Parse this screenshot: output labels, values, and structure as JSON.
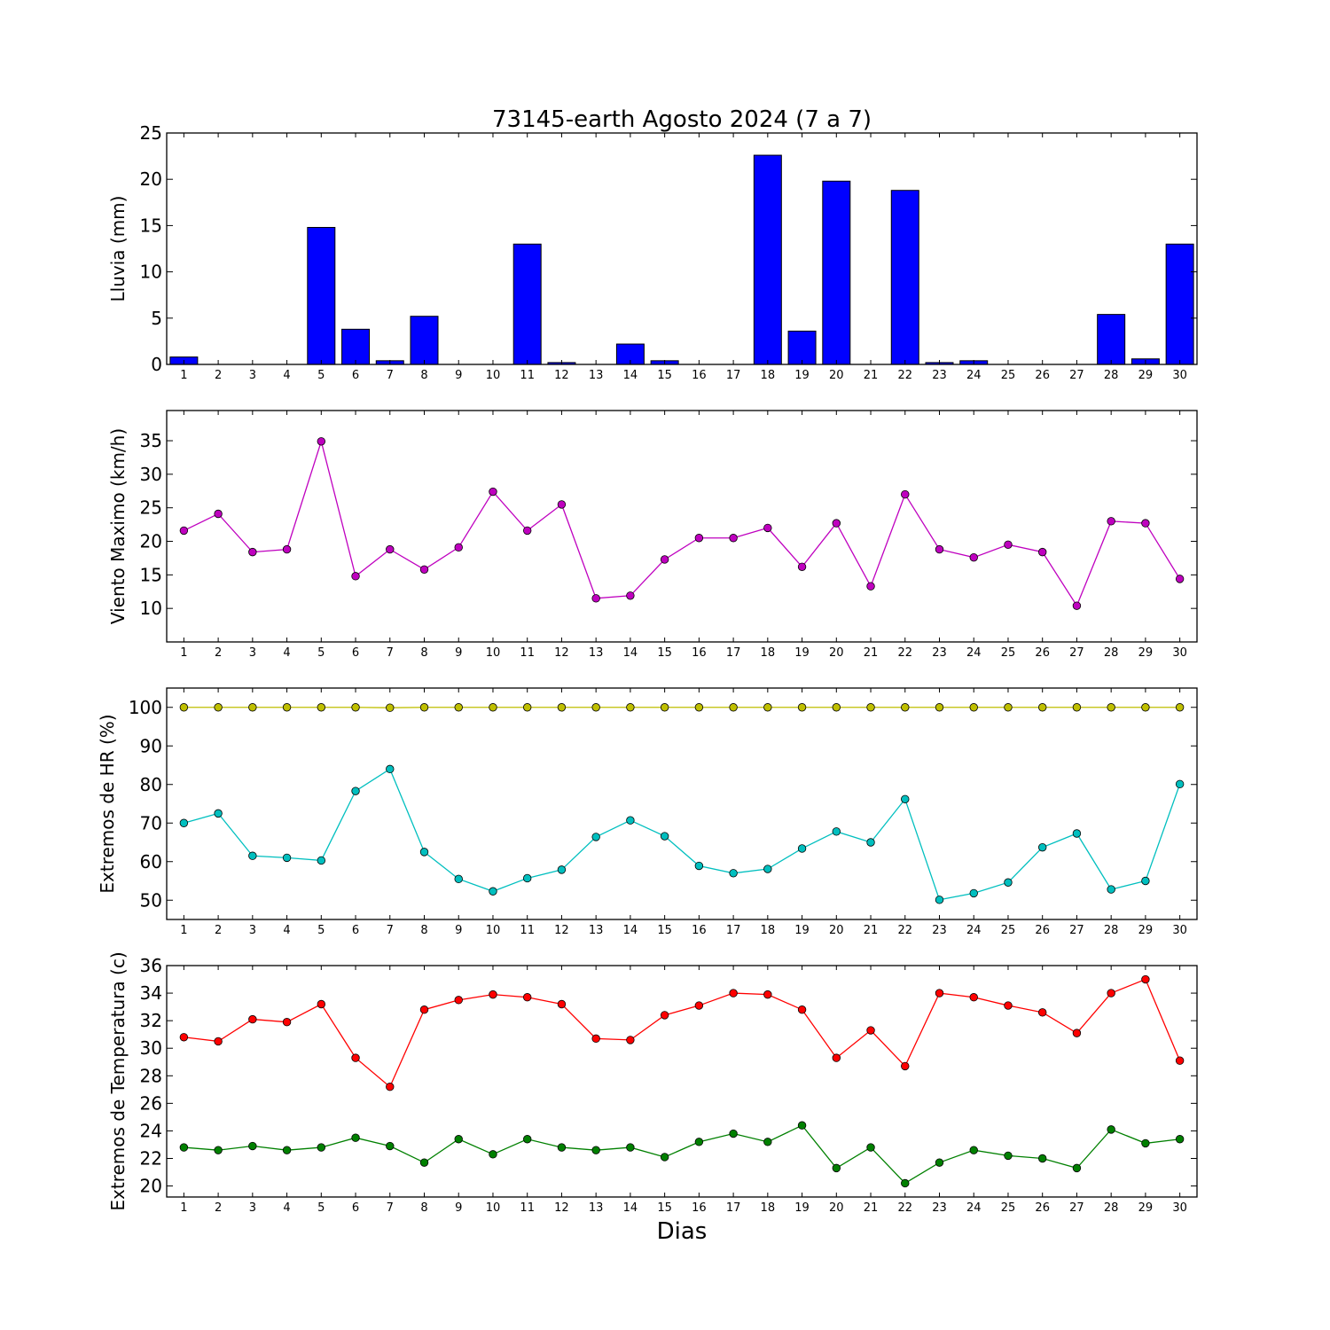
{
  "figure": {
    "title": "73145-earth Agosto 2024  (7 a 7)",
    "xlabel": "Dias"
  },
  "chart_data": [
    {
      "type": "bar",
      "ylabel": "Lluvia (mm)",
      "x": [
        1,
        2,
        3,
        4,
        5,
        6,
        7,
        8,
        9,
        10,
        11,
        12,
        13,
        14,
        15,
        16,
        17,
        18,
        19,
        20,
        21,
        22,
        23,
        24,
        25,
        26,
        27,
        28,
        29,
        30
      ],
      "xlim": [
        0.5,
        30.5
      ],
      "ylim": [
        0,
        25
      ],
      "yticks": [
        0,
        5,
        10,
        15,
        20,
        25
      ],
      "series": [
        {
          "color": "#0000ff",
          "values": [
            0.8,
            0,
            0,
            0,
            14.8,
            3.8,
            0.4,
            5.2,
            0,
            0,
            13.0,
            0.2,
            0,
            2.2,
            0.4,
            0,
            0,
            22.6,
            3.6,
            19.8,
            0,
            18.8,
            0.2,
            0.4,
            0,
            0,
            0,
            5.4,
            0.6,
            13.0
          ]
        }
      ]
    },
    {
      "type": "line",
      "ylabel": "Viento Maximo (km/h)",
      "x": [
        1,
        2,
        3,
        4,
        5,
        6,
        7,
        8,
        9,
        10,
        11,
        12,
        13,
        14,
        15,
        16,
        17,
        18,
        19,
        20,
        21,
        22,
        23,
        24,
        25,
        26,
        27,
        28,
        29,
        30
      ],
      "xlim": [
        0.5,
        30.5
      ],
      "ylim": [
        5,
        39.5
      ],
      "yticks": [
        10,
        15,
        20,
        25,
        30,
        35
      ],
      "series": [
        {
          "color": "#bf00bf",
          "values": [
            21.6,
            24.1,
            18.4,
            18.8,
            34.9,
            14.8,
            18.8,
            15.8,
            19.1,
            27.4,
            21.6,
            25.5,
            11.5,
            11.9,
            17.3,
            20.5,
            20.5,
            22.0,
            16.2,
            22.7,
            13.3,
            27.0,
            18.8,
            17.6,
            19.5,
            18.4,
            10.4,
            23.0,
            22.7,
            14.4
          ]
        }
      ]
    },
    {
      "type": "line",
      "ylabel": "Extremos de HR (%)",
      "x": [
        1,
        2,
        3,
        4,
        5,
        6,
        7,
        8,
        9,
        10,
        11,
        12,
        13,
        14,
        15,
        16,
        17,
        18,
        19,
        20,
        21,
        22,
        23,
        24,
        25,
        26,
        27,
        28,
        29,
        30
      ],
      "xlim": [
        0.5,
        30.5
      ],
      "ylim": [
        45,
        105
      ],
      "yticks": [
        50,
        60,
        70,
        80,
        90,
        100
      ],
      "series": [
        {
          "color": "#bfbf00",
          "values": [
            100,
            100,
            100,
            100,
            100,
            100,
            99.9,
            100,
            100,
            100,
            100,
            100,
            100,
            100,
            100,
            100,
            100,
            100,
            100,
            100,
            100,
            100,
            100,
            100,
            100,
            100,
            100,
            100,
            100,
            100
          ]
        },
        {
          "color": "#00bfbf",
          "values": [
            70,
            72.5,
            61.5,
            61,
            60.3,
            78.3,
            84,
            62.5,
            55.5,
            52.3,
            55.7,
            57.9,
            66.4,
            70.7,
            66.6,
            58.9,
            57,
            58.1,
            63.4,
            67.8,
            65,
            76.2,
            50.1,
            51.8,
            54.6,
            63.7,
            67.3,
            52.8,
            55,
            80.1
          ]
        }
      ]
    },
    {
      "type": "line",
      "ylabel": "Extremos de Temperatura (c)",
      "x": [
        1,
        2,
        3,
        4,
        5,
        6,
        7,
        8,
        9,
        10,
        11,
        12,
        13,
        14,
        15,
        16,
        17,
        18,
        19,
        20,
        21,
        22,
        23,
        24,
        25,
        26,
        27,
        28,
        29,
        30
      ],
      "xlim": [
        0.5,
        30.5
      ],
      "ylim": [
        19.2,
        36
      ],
      "yticks": [
        20,
        22,
        24,
        26,
        28,
        30,
        32,
        34,
        36
      ],
      "series": [
        {
          "color": "#ff0000",
          "values": [
            30.8,
            30.5,
            32.1,
            31.9,
            33.2,
            29.3,
            27.2,
            32.8,
            33.5,
            33.9,
            33.7,
            33.2,
            30.7,
            30.6,
            32.4,
            33.1,
            34,
            33.9,
            32.8,
            29.3,
            31.3,
            28.7,
            34,
            33.7,
            33.1,
            32.6,
            31.1,
            34,
            35,
            29.1
          ]
        },
        {
          "color": "#008000",
          "values": [
            22.8,
            22.6,
            22.9,
            22.6,
            22.8,
            23.5,
            22.9,
            21.7,
            23.4,
            22.3,
            23.4,
            22.8,
            22.6,
            22.8,
            22.1,
            23.2,
            23.8,
            23.2,
            24.4,
            21.3,
            22.8,
            20.2,
            21.7,
            22.6,
            22.2,
            22,
            21.3,
            24.1,
            23.1,
            23.4
          ]
        }
      ]
    }
  ]
}
